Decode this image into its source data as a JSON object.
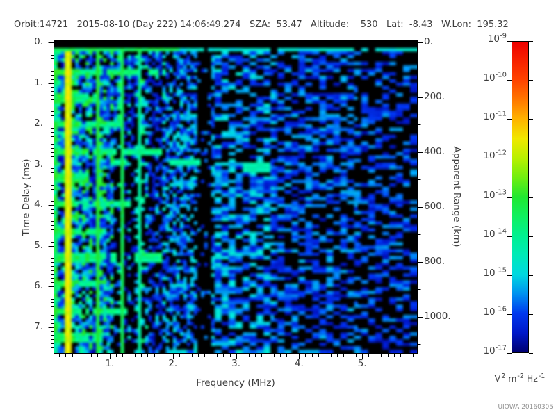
{
  "header": {
    "line": "Orbit:14721   2015-08-10 (Day 222) 14:06:49.274   SZA:  53.47   Altitude:    530   Lat:  -8.43   W.Lon:  195.32"
  },
  "watermark": "UIOWA 20160305",
  "colors": {
    "background": "#ffffff",
    "plot_background": "#000000",
    "frame": "#000000",
    "text": "#3d3d3d",
    "watermark": "#8f8f8f"
  },
  "chart_data": {
    "type": "heatmap",
    "title": "",
    "xlabel": "Frequency (MHz)",
    "ylabel": "Time Delay (ms)",
    "y2label": "Apparent Range (km)",
    "grid": false,
    "x_range_mhz": [
      0.13,
      5.87
    ],
    "y_range_ms": [
      -0.04,
      7.67
    ],
    "y2_range_km": [
      -10,
      1130
    ],
    "x_major_ticks": [
      {
        "v": 1,
        "label": "1."
      },
      {
        "v": 2,
        "label": "2."
      },
      {
        "v": 3,
        "label": "3."
      },
      {
        "v": 4,
        "label": "4."
      },
      {
        "v": 5,
        "label": "5."
      }
    ],
    "x_minor_step_mhz": 0.1,
    "y_major_ticks": [
      {
        "v": 0,
        "label": "0."
      },
      {
        "v": 1,
        "label": "1."
      },
      {
        "v": 2,
        "label": "2."
      },
      {
        "v": 3,
        "label": "3."
      },
      {
        "v": 4,
        "label": "4."
      },
      {
        "v": 5,
        "label": "5."
      },
      {
        "v": 6,
        "label": "6."
      },
      {
        "v": 7,
        "label": "7."
      }
    ],
    "y_minor_step_ms": 0.1,
    "y2_major_ticks": [
      {
        "v": 0,
        "label": "0."
      },
      {
        "v": 200,
        "label": "200."
      },
      {
        "v": 400,
        "label": "400."
      },
      {
        "v": 600,
        "label": "600."
      },
      {
        "v": 800,
        "label": "800."
      },
      {
        "v": 1000,
        "label": "1000."
      }
    ],
    "y2_minor_step_km": 100,
    "colorbar": {
      "scale": "log",
      "min": "1e-17",
      "max": "1e-9",
      "tick_base": "10",
      "tick_exponents": [
        "-9",
        "-10",
        "-11",
        "-12",
        "-13",
        "-14",
        "-15",
        "-16",
        "-17"
      ],
      "units_parts": [
        [
          "V",
          "2"
        ],
        [
          "m",
          "-2"
        ],
        [
          "Hz",
          "-1"
        ]
      ],
      "colormap_stops": [
        [
          0.0,
          "#000070"
        ],
        [
          0.0625,
          "#0018c8"
        ],
        [
          0.125,
          "#0038ee"
        ],
        [
          0.1875,
          "#0090f0"
        ],
        [
          0.25,
          "#00d8e0"
        ],
        [
          0.3125,
          "#00eab8"
        ],
        [
          0.375,
          "#00f090"
        ],
        [
          0.4375,
          "#10f060"
        ],
        [
          0.5,
          "#20e830"
        ],
        [
          0.5625,
          "#70ee10"
        ],
        [
          0.625,
          "#b8f000"
        ],
        [
          0.6875,
          "#f0e800"
        ],
        [
          0.75,
          "#ffb400"
        ],
        [
          0.8125,
          "#ff7800"
        ],
        [
          0.875,
          "#ff4400"
        ],
        [
          1.0,
          "#ee0000"
        ]
      ]
    },
    "features": {
      "description": "Ionospheric sounder radargram: strong plasma/cyclotron resonances below ~1.9 MHz, surface echo trace near 3 ms delay at 2-3.5 MHz, diffuse blue noise elsewhere, attenuation gap near 2.5 MHz",
      "top_echo_line_ms": 0.18,
      "cyclotron_echo_period_ms": 0.655,
      "cyclotron_first_ms": 0.72,
      "cyclotron_extents_mhz": [
        1.9,
        0.8,
        1.15,
        1.85,
        0.75,
        1.35,
        0.95,
        1.8,
        0.8,
        1.25,
        0.9
      ],
      "resonance_lines": [
        {
          "f_mhz": 0.34,
          "halfw": 0.05,
          "v": 0.63
        },
        {
          "f_mhz": 0.82,
          "halfw": 0.035,
          "v": 0.46
        },
        {
          "f_mhz": 1.2,
          "halfw": 0.03,
          "v": 0.42
        },
        {
          "f_mhz": 1.45,
          "halfw": 0.028,
          "v": 0.32
        }
      ],
      "left_edge_band_mhz": 0.17,
      "ionosphere_band_mhz": [
        0.13,
        1.9
      ],
      "attenuation_gap_mhz": [
        2.4,
        2.62
      ],
      "echo_segments": [
        {
          "t_ms": [
            2.86,
            3.04
          ],
          "f_mhz": [
            1.95,
            2.44
          ],
          "v": 0.32
        },
        {
          "t_ms": [
            3.0,
            3.18
          ],
          "f_mhz": [
            3.08,
            3.52
          ],
          "v": 0.3
        },
        {
          "t_ms": [
            2.88,
            3.02
          ],
          "f_mhz": [
            1.0,
            1.25
          ],
          "v": 0.33
        }
      ],
      "noise_densities": {
        "band": 0.8,
        "mid": 0.62,
        "high": 0.55,
        "far": 0.44,
        "gap": 0.13
      }
    }
  }
}
